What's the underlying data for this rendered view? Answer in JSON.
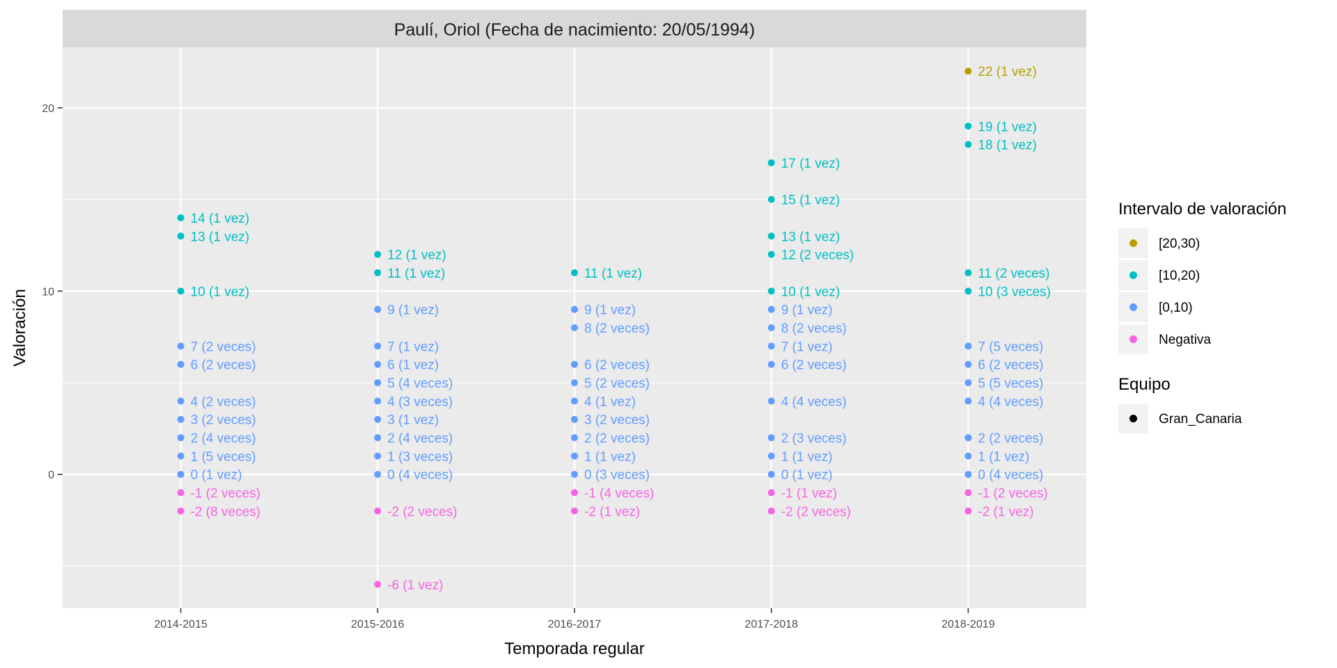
{
  "chart_data": {
    "type": "scatter",
    "title": "Paulí, Oriol (Fecha de nacimiento: 20/05/1994)",
    "xlabel": "Temporada regular",
    "ylabel": "Valoración",
    "categories": [
      "2014-2015",
      "2015-2016",
      "2016-2017",
      "2017-2018",
      "2018-2019"
    ],
    "ylim": [
      -7.3,
      23.3
    ],
    "yticks": [
      0,
      10,
      20
    ],
    "grid": true,
    "legend_position": "right",
    "colors": {
      "[20,30)": "#B79F00",
      "[10,20)": "#00BFC4",
      "[0,10)": "#619CFF",
      "Negativa": "#F564E3"
    },
    "legends": [
      {
        "title": "Intervalo de valoración",
        "items": [
          {
            "label": "[20,30)",
            "color": "#B79F00"
          },
          {
            "label": "[10,20)",
            "color": "#00BFC4"
          },
          {
            "label": "[0,10)",
            "color": "#619CFF"
          },
          {
            "label": "Negativa",
            "color": "#F564E3"
          }
        ]
      },
      {
        "title": "Equipo",
        "items": [
          {
            "label": "Gran_Canaria",
            "color": "#000000"
          }
        ]
      }
    ],
    "points": [
      {
        "season": "2014-2015",
        "value": 14,
        "label": "14 (1 vez)",
        "group": "[10,20)"
      },
      {
        "season": "2014-2015",
        "value": 13,
        "label": "13 (1 vez)",
        "group": "[10,20)"
      },
      {
        "season": "2014-2015",
        "value": 10,
        "label": "10 (1 vez)",
        "group": "[10,20)"
      },
      {
        "season": "2014-2015",
        "value": 7,
        "label": "7 (2 veces)",
        "group": "[0,10)"
      },
      {
        "season": "2014-2015",
        "value": 6,
        "label": "6 (2 veces)",
        "group": "[0,10)"
      },
      {
        "season": "2014-2015",
        "value": 4,
        "label": "4 (2 veces)",
        "group": "[0,10)"
      },
      {
        "season": "2014-2015",
        "value": 3,
        "label": "3 (2 veces)",
        "group": "[0,10)"
      },
      {
        "season": "2014-2015",
        "value": 2,
        "label": "2 (4 veces)",
        "group": "[0,10)"
      },
      {
        "season": "2014-2015",
        "value": 1,
        "label": "1 (5 veces)",
        "group": "[0,10)"
      },
      {
        "season": "2014-2015",
        "value": 0,
        "label": "0 (1 vez)",
        "group": "[0,10)"
      },
      {
        "season": "2014-2015",
        "value": -1,
        "label": "-1 (2 veces)",
        "group": "Negativa"
      },
      {
        "season": "2014-2015",
        "value": -2,
        "label": "-2 (8 veces)",
        "group": "Negativa"
      },
      {
        "season": "2015-2016",
        "value": 12,
        "label": "12 (1 vez)",
        "group": "[10,20)"
      },
      {
        "season": "2015-2016",
        "value": 11,
        "label": "11 (1 vez)",
        "group": "[10,20)"
      },
      {
        "season": "2015-2016",
        "value": 9,
        "label": "9 (1 vez)",
        "group": "[0,10)"
      },
      {
        "season": "2015-2016",
        "value": 7,
        "label": "7 (1 vez)",
        "group": "[0,10)"
      },
      {
        "season": "2015-2016",
        "value": 6,
        "label": "6 (1 vez)",
        "group": "[0,10)"
      },
      {
        "season": "2015-2016",
        "value": 5,
        "label": "5 (4 veces)",
        "group": "[0,10)"
      },
      {
        "season": "2015-2016",
        "value": 4,
        "label": "4 (3 veces)",
        "group": "[0,10)"
      },
      {
        "season": "2015-2016",
        "value": 3,
        "label": "3 (1 vez)",
        "group": "[0,10)"
      },
      {
        "season": "2015-2016",
        "value": 2,
        "label": "2 (4 veces)",
        "group": "[0,10)"
      },
      {
        "season": "2015-2016",
        "value": 1,
        "label": "1 (3 veces)",
        "group": "[0,10)"
      },
      {
        "season": "2015-2016",
        "value": 0,
        "label": "0 (4 veces)",
        "group": "[0,10)"
      },
      {
        "season": "2015-2016",
        "value": -2,
        "label": "-2 (2 veces)",
        "group": "Negativa"
      },
      {
        "season": "2015-2016",
        "value": -6,
        "label": "-6 (1 vez)",
        "group": "Negativa"
      },
      {
        "season": "2016-2017",
        "value": 11,
        "label": "11 (1 vez)",
        "group": "[10,20)"
      },
      {
        "season": "2016-2017",
        "value": 9,
        "label": "9 (1 vez)",
        "group": "[0,10)"
      },
      {
        "season": "2016-2017",
        "value": 8,
        "label": "8 (2 veces)",
        "group": "[0,10)"
      },
      {
        "season": "2016-2017",
        "value": 6,
        "label": "6 (2 veces)",
        "group": "[0,10)"
      },
      {
        "season": "2016-2017",
        "value": 5,
        "label": "5 (2 veces)",
        "group": "[0,10)"
      },
      {
        "season": "2016-2017",
        "value": 4,
        "label": "4 (1 vez)",
        "group": "[0,10)"
      },
      {
        "season": "2016-2017",
        "value": 3,
        "label": "3 (2 veces)",
        "group": "[0,10)"
      },
      {
        "season": "2016-2017",
        "value": 2,
        "label": "2 (2 veces)",
        "group": "[0,10)"
      },
      {
        "season": "2016-2017",
        "value": 1,
        "label": "1 (1 vez)",
        "group": "[0,10)"
      },
      {
        "season": "2016-2017",
        "value": 0,
        "label": "0 (3 veces)",
        "group": "[0,10)"
      },
      {
        "season": "2016-2017",
        "value": -1,
        "label": "-1 (4 veces)",
        "group": "Negativa"
      },
      {
        "season": "2016-2017",
        "value": -2,
        "label": "-2 (1 vez)",
        "group": "Negativa"
      },
      {
        "season": "2017-2018",
        "value": 17,
        "label": "17 (1 vez)",
        "group": "[10,20)"
      },
      {
        "season": "2017-2018",
        "value": 15,
        "label": "15 (1 vez)",
        "group": "[10,20)"
      },
      {
        "season": "2017-2018",
        "value": 13,
        "label": "13 (1 vez)",
        "group": "[10,20)"
      },
      {
        "season": "2017-2018",
        "value": 12,
        "label": "12 (2 veces)",
        "group": "[10,20)"
      },
      {
        "season": "2017-2018",
        "value": 10,
        "label": "10 (1 vez)",
        "group": "[10,20)"
      },
      {
        "season": "2017-2018",
        "value": 9,
        "label": "9 (1 vez)",
        "group": "[0,10)"
      },
      {
        "season": "2017-2018",
        "value": 8,
        "label": "8 (2 veces)",
        "group": "[0,10)"
      },
      {
        "season": "2017-2018",
        "value": 7,
        "label": "7 (1 vez)",
        "group": "[0,10)"
      },
      {
        "season": "2017-2018",
        "value": 6,
        "label": "6 (2 veces)",
        "group": "[0,10)"
      },
      {
        "season": "2017-2018",
        "value": 4,
        "label": "4 (4 veces)",
        "group": "[0,10)"
      },
      {
        "season": "2017-2018",
        "value": 2,
        "label": "2 (3 veces)",
        "group": "[0,10)"
      },
      {
        "season": "2017-2018",
        "value": 1,
        "label": "1 (1 vez)",
        "group": "[0,10)"
      },
      {
        "season": "2017-2018",
        "value": 0,
        "label": "0 (1 vez)",
        "group": "[0,10)"
      },
      {
        "season": "2017-2018",
        "value": -1,
        "label": "-1 (1 vez)",
        "group": "Negativa"
      },
      {
        "season": "2017-2018",
        "value": -2,
        "label": "-2 (2 veces)",
        "group": "Negativa"
      },
      {
        "season": "2018-2019",
        "value": 22,
        "label": "22 (1 vez)",
        "group": "[20,30)"
      },
      {
        "season": "2018-2019",
        "value": 19,
        "label": "19 (1 vez)",
        "group": "[10,20)"
      },
      {
        "season": "2018-2019",
        "value": 18,
        "label": "18 (1 vez)",
        "group": "[10,20)"
      },
      {
        "season": "2018-2019",
        "value": 11,
        "label": "11 (2 veces)",
        "group": "[10,20)"
      },
      {
        "season": "2018-2019",
        "value": 10,
        "label": "10 (3 veces)",
        "group": "[10,20)"
      },
      {
        "season": "2018-2019",
        "value": 7,
        "label": "7 (5 veces)",
        "group": "[0,10)"
      },
      {
        "season": "2018-2019",
        "value": 6,
        "label": "6 (2 veces)",
        "group": "[0,10)"
      },
      {
        "season": "2018-2019",
        "value": 5,
        "label": "5 (5 veces)",
        "group": "[0,10)"
      },
      {
        "season": "2018-2019",
        "value": 4,
        "label": "4 (4 veces)",
        "group": "[0,10)"
      },
      {
        "season": "2018-2019",
        "value": 2,
        "label": "2 (2 veces)",
        "group": "[0,10)"
      },
      {
        "season": "2018-2019",
        "value": 1,
        "label": "1 (1 vez)",
        "group": "[0,10)"
      },
      {
        "season": "2018-2019",
        "value": 0,
        "label": "0 (4 veces)",
        "group": "[0,10)"
      },
      {
        "season": "2018-2019",
        "value": -1,
        "label": "-1 (2 veces)",
        "group": "Negativa"
      },
      {
        "season": "2018-2019",
        "value": -2,
        "label": "-2 (1 vez)",
        "group": "Negativa"
      }
    ]
  }
}
